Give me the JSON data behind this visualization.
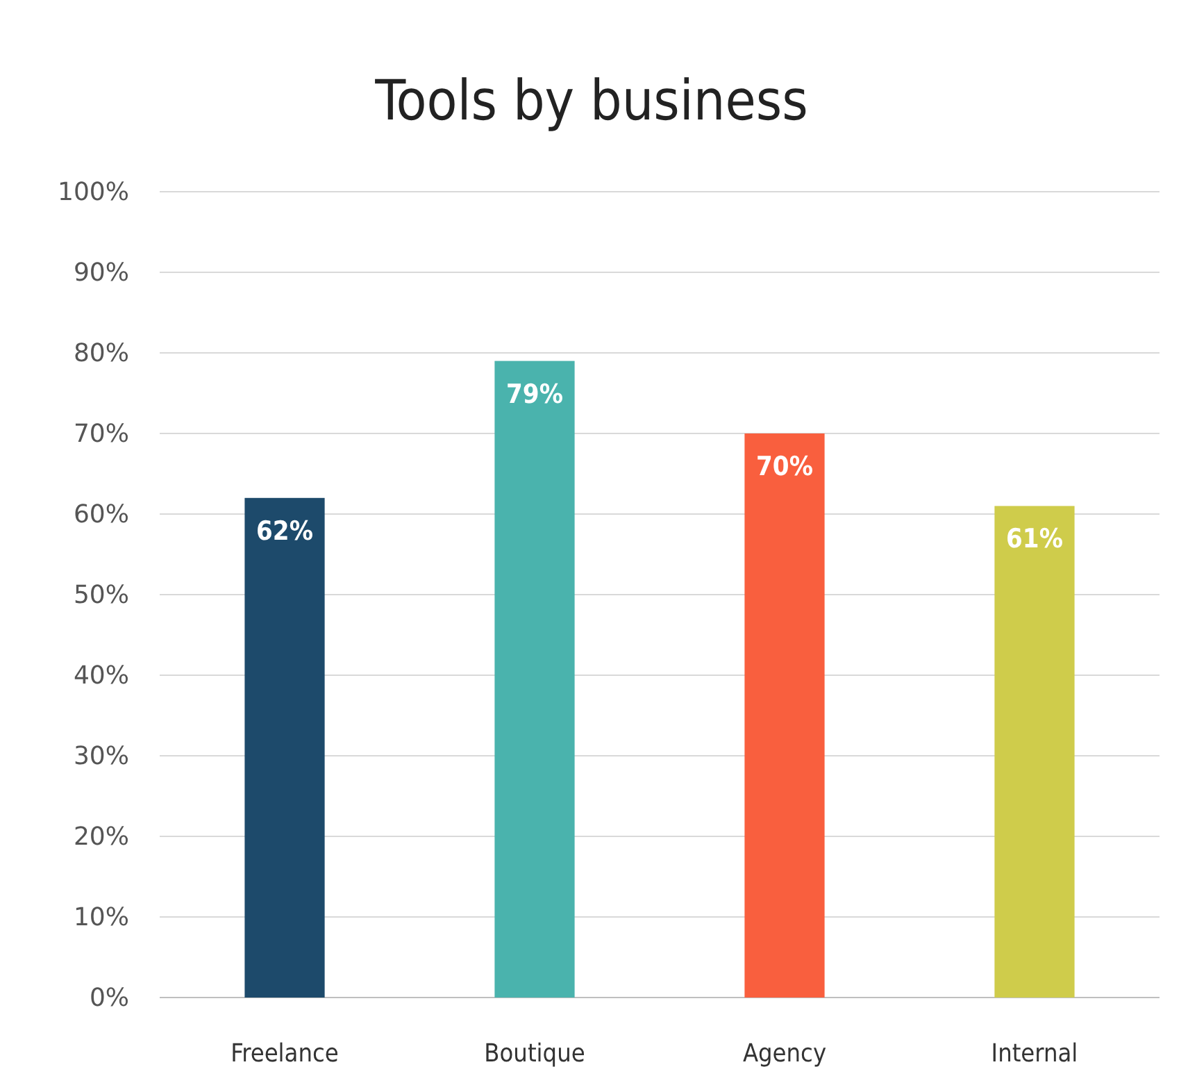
{
  "chart_data": {
    "type": "bar",
    "title": "Tools by business",
    "categories": [
      "Freelance",
      "Boutique",
      "Agency",
      "Internal"
    ],
    "values": [
      62,
      79,
      70,
      61
    ],
    "colors": [
      "#1d4a6b",
      "#4ab3ad",
      "#f95f3e",
      "#cfcc4b"
    ],
    "value_labels": [
      "62%",
      "79%",
      "70%",
      "61%"
    ],
    "ylim": [
      0,
      100
    ],
    "yticks": [
      {
        "value": 0,
        "label": "0%"
      },
      {
        "value": 10,
        "label": "10%"
      },
      {
        "value": 20,
        "label": "20%"
      },
      {
        "value": 30,
        "label": "30%"
      },
      {
        "value": 40,
        "label": "40%"
      },
      {
        "value": 50,
        "label": "50%"
      },
      {
        "value": 60,
        "label": "60%"
      },
      {
        "value": 70,
        "label": "70%"
      },
      {
        "value": 80,
        "label": "80%"
      },
      {
        "value": 90,
        "label": "90%"
      },
      {
        "value": 100,
        "label": "100%"
      }
    ],
    "grid": "y"
  }
}
